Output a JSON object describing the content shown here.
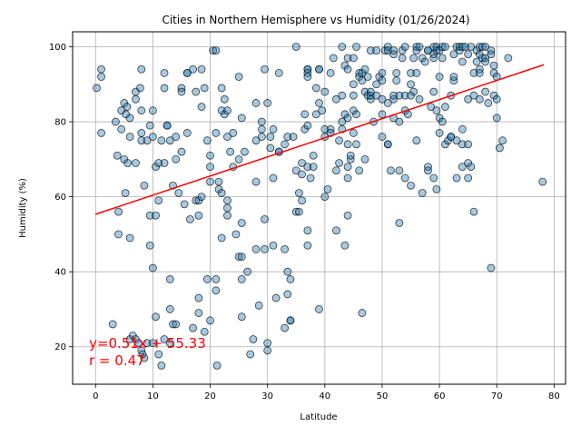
{
  "chart_data": {
    "type": "scatter",
    "title": "Cities in Northern Hemisphere vs Humidity (01/26/2024)",
    "xlabel": "Latitude",
    "ylabel": "Humidity (%)",
    "xlim": [
      -4,
      82
    ],
    "ylim": [
      10,
      104
    ],
    "xticks": [
      0,
      10,
      20,
      30,
      40,
      50,
      60,
      70,
      80
    ],
    "yticks": [
      20,
      40,
      60,
      80,
      100
    ],
    "grid": true,
    "colors": {
      "point_fill": "#1f77b4",
      "point_edge": "#000000",
      "regression": "#ff0000",
      "annotation": "#ff0000"
    },
    "regression": {
      "slope": 0.51,
      "intercept": 55.33,
      "x_range": [
        0,
        78.2
      ]
    },
    "annotations": {
      "equation": "y=0.51x + 55.33",
      "r_value": "r = 0.47"
    },
    "points": [
      [
        0.2,
        89
      ],
      [
        1,
        94
      ],
      [
        1,
        92
      ],
      [
        1,
        77
      ],
      [
        3,
        26
      ],
      [
        3.5,
        80
      ],
      [
        3.8,
        71
      ],
      [
        4,
        50
      ],
      [
        4,
        56
      ],
      [
        4.5,
        83
      ],
      [
        4.5,
        78
      ],
      [
        5,
        85
      ],
      [
        5,
        70
      ],
      [
        5.2,
        61
      ],
      [
        5.3,
        82
      ],
      [
        5.5,
        84
      ],
      [
        5.6,
        69
      ],
      [
        6,
        49
      ],
      [
        6,
        81
      ],
      [
        6,
        76
      ],
      [
        6,
        22
      ],
      [
        6.5,
        23
      ],
      [
        7,
        69
      ],
      [
        7,
        88
      ],
      [
        7,
        86
      ],
      [
        7,
        22
      ],
      [
        7.5,
        21
      ],
      [
        7.8,
        89
      ],
      [
        8,
        83
      ],
      [
        8,
        94
      ],
      [
        8,
        77
      ],
      [
        8,
        75
      ],
      [
        8,
        19
      ],
      [
        8.2,
        18
      ],
      [
        8.5,
        63
      ],
      [
        8.5,
        17
      ],
      [
        9,
        75
      ],
      [
        9,
        21
      ],
      [
        9.5,
        79
      ],
      [
        9.5,
        55
      ],
      [
        9.5,
        47
      ],
      [
        10,
        83
      ],
      [
        10,
        76
      ],
      [
        10,
        41
      ],
      [
        10,
        21
      ],
      [
        10.5,
        28
      ],
      [
        10.5,
        68
      ],
      [
        10.5,
        55
      ],
      [
        11,
        69
      ],
      [
        11,
        59
      ],
      [
        11,
        18
      ],
      [
        11.5,
        75
      ],
      [
        11.5,
        15
      ],
      [
        12,
        93
      ],
      [
        12,
        89
      ],
      [
        12,
        22
      ],
      [
        12,
        69
      ],
      [
        12.5,
        79
      ],
      [
        12.5,
        79
      ],
      [
        13,
        38
      ],
      [
        13,
        75
      ],
      [
        13,
        30
      ],
      [
        13,
        21
      ],
      [
        13.5,
        63
      ],
      [
        13.5,
        26
      ],
      [
        14,
        76
      ],
      [
        14,
        70
      ],
      [
        14,
        26
      ],
      [
        14.5,
        61
      ],
      [
        15,
        89
      ],
      [
        15,
        88
      ],
      [
        15,
        72
      ],
      [
        15.5,
        58
      ],
      [
        16,
        93
      ],
      [
        16,
        77
      ],
      [
        16,
        93
      ],
      [
        16.5,
        54
      ],
      [
        17,
        94
      ],
      [
        17,
        25
      ],
      [
        17.5,
        59
      ],
      [
        17.5,
        88
      ],
      [
        18,
        29
      ],
      [
        18,
        33
      ],
      [
        18,
        55
      ],
      [
        18,
        59
      ],
      [
        18.5,
        60
      ],
      [
        18.5,
        94
      ],
      [
        18.5,
        84
      ],
      [
        19,
        89
      ],
      [
        19,
        24
      ],
      [
        19.5,
        38
      ],
      [
        19.5,
        75
      ],
      [
        20,
        71
      ],
      [
        20,
        68
      ],
      [
        20,
        64
      ],
      [
        20,
        27
      ],
      [
        20.5,
        99
      ],
      [
        21,
        99
      ],
      [
        21,
        77
      ],
      [
        21,
        38
      ],
      [
        21,
        35
      ],
      [
        21.2,
        15
      ],
      [
        21.5,
        64
      ],
      [
        21.5,
        62
      ],
      [
        22,
        83
      ],
      [
        22,
        49
      ],
      [
        22,
        61
      ],
      [
        22,
        89
      ],
      [
        22.5,
        86
      ],
      [
        22.5,
        82
      ],
      [
        23,
        76
      ],
      [
        23,
        59
      ],
      [
        23,
        57
      ],
      [
        23,
        55
      ],
      [
        23,
        83
      ],
      [
        23.5,
        72
      ],
      [
        24,
        68
      ],
      [
        24,
        77
      ],
      [
        24.5,
        50
      ],
      [
        25,
        92
      ],
      [
        25,
        44
      ],
      [
        25,
        70
      ],
      [
        25.5,
        81
      ],
      [
        25.5,
        53
      ],
      [
        25.5,
        44
      ],
      [
        25.5,
        38
      ],
      [
        25.5,
        28
      ],
      [
        26,
        72
      ],
      [
        26.5,
        40
      ],
      [
        27,
        18
      ],
      [
        27.5,
        22
      ],
      [
        28,
        75
      ],
      [
        28,
        64
      ],
      [
        28,
        46
      ],
      [
        28,
        85
      ],
      [
        28.5,
        31
      ],
      [
        29,
        76
      ],
      [
        29,
        80
      ],
      [
        29,
        78
      ],
      [
        29.5,
        94
      ],
      [
        29.5,
        54
      ],
      [
        29.5,
        46
      ],
      [
        30,
        85
      ],
      [
        30,
        21
      ],
      [
        30,
        19
      ],
      [
        30.5,
        76
      ],
      [
        30.5,
        73
      ],
      [
        31,
        78
      ],
      [
        31,
        65
      ],
      [
        31,
        47
      ],
      [
        31.5,
        33
      ],
      [
        32,
        93
      ],
      [
        32,
        72
      ],
      [
        32,
        72
      ],
      [
        33,
        74
      ],
      [
        33,
        25
      ],
      [
        33,
        46
      ],
      [
        33.5,
        76
      ],
      [
        33.5,
        34
      ],
      [
        33.5,
        40
      ],
      [
        34,
        38
      ],
      [
        34,
        27
      ],
      [
        34,
        27
      ],
      [
        34.5,
        76
      ],
      [
        35,
        100
      ],
      [
        35,
        67
      ],
      [
        35,
        56
      ],
      [
        35.5,
        56
      ],
      [
        35.5,
        61
      ],
      [
        36,
        59
      ],
      [
        36,
        66
      ],
      [
        36,
        69
      ],
      [
        36.5,
        78
      ],
      [
        36.5,
        82
      ],
      [
        37,
        94
      ],
      [
        37,
        94
      ],
      [
        37,
        93
      ],
      [
        37,
        92
      ],
      [
        37,
        79
      ],
      [
        37,
        68
      ],
      [
        37,
        51
      ],
      [
        37,
        47
      ],
      [
        37.5,
        65
      ],
      [
        38,
        71
      ],
      [
        38,
        68
      ],
      [
        38.5,
        82
      ],
      [
        38.5,
        89
      ],
      [
        39,
        94
      ],
      [
        39,
        94
      ],
      [
        39,
        85
      ],
      [
        39,
        30
      ],
      [
        39.5,
        83
      ],
      [
        40,
        88
      ],
      [
        40,
        78
      ],
      [
        40,
        76
      ],
      [
        40,
        60
      ],
      [
        40.5,
        62
      ],
      [
        41,
        93
      ],
      [
        41,
        78
      ],
      [
        41,
        77
      ],
      [
        41.5,
        97
      ],
      [
        42,
        86
      ],
      [
        42,
        67
      ],
      [
        42,
        51
      ],
      [
        42.5,
        75
      ],
      [
        42.5,
        69
      ],
      [
        43,
        100
      ],
      [
        43,
        80
      ],
      [
        43,
        78
      ],
      [
        43,
        87
      ],
      [
        43.5,
        82
      ],
      [
        43.5,
        95
      ],
      [
        43.5,
        47
      ],
      [
        44,
        97
      ],
      [
        44,
        94
      ],
      [
        44,
        81
      ],
      [
        44,
        74
      ],
      [
        44,
        68
      ],
      [
        44,
        65
      ],
      [
        44,
        55
      ],
      [
        44.5,
        70
      ],
      [
        44.5,
        71
      ],
      [
        45,
        87
      ],
      [
        45,
        83
      ],
      [
        45,
        77
      ],
      [
        45,
        97
      ],
      [
        45,
        90
      ],
      [
        45.5,
        100
      ],
      [
        45.5,
        74
      ],
      [
        45.5,
        82
      ],
      [
        46,
        93
      ],
      [
        46,
        92
      ],
      [
        46,
        67
      ],
      [
        46.5,
        93
      ],
      [
        46.5,
        91
      ],
      [
        46.5,
        29
      ],
      [
        47,
        70
      ],
      [
        47,
        88
      ],
      [
        47,
        94
      ],
      [
        47.5,
        87
      ],
      [
        47.5,
        92
      ],
      [
        48,
        86
      ],
      [
        48,
        87
      ],
      [
        48,
        88
      ],
      [
        48,
        99
      ],
      [
        48.5,
        80
      ],
      [
        49,
        99
      ],
      [
        49,
        90
      ],
      [
        49,
        87
      ],
      [
        49.5,
        92
      ],
      [
        50,
        86
      ],
      [
        50,
        76
      ],
      [
        50,
        82
      ],
      [
        50,
        93
      ],
      [
        50,
        91
      ],
      [
        50.5,
        99
      ],
      [
        51,
        100
      ],
      [
        51,
        99
      ],
      [
        51,
        74
      ],
      [
        51,
        74
      ],
      [
        51,
        85
      ],
      [
        51.5,
        67
      ],
      [
        52,
        99
      ],
      [
        52,
        98
      ],
      [
        52,
        86
      ],
      [
        52,
        81
      ],
      [
        52,
        87
      ],
      [
        52.5,
        93
      ],
      [
        52.5,
        91
      ],
      [
        53,
        87
      ],
      [
        53,
        80
      ],
      [
        53,
        67
      ],
      [
        53,
        53
      ],
      [
        53.5,
        99
      ],
      [
        53.5,
        97
      ],
      [
        54,
        100
      ],
      [
        54,
        87
      ],
      [
        54,
        83
      ],
      [
        54,
        65
      ],
      [
        54.5,
        82
      ],
      [
        55,
        90
      ],
      [
        55,
        87
      ],
      [
        55,
        93
      ],
      [
        55,
        63
      ],
      [
        55.5,
        97
      ],
      [
        55.5,
        88
      ],
      [
        56,
        100
      ],
      [
        56,
        99
      ],
      [
        56,
        93
      ],
      [
        56,
        75
      ],
      [
        56.5,
        100
      ],
      [
        56.5,
        86
      ],
      [
        57,
        97
      ],
      [
        57,
        61
      ],
      [
        57.5,
        96
      ],
      [
        58,
        99
      ],
      [
        58,
        99
      ],
      [
        58,
        68
      ],
      [
        58,
        67
      ],
      [
        58.5,
        84
      ],
      [
        59,
        98
      ],
      [
        59,
        100
      ],
      [
        59,
        97
      ],
      [
        59,
        88
      ],
      [
        59,
        65
      ],
      [
        59.5,
        100
      ],
      [
        59.5,
        99
      ],
      [
        59.5,
        83
      ],
      [
        59.5,
        62
      ],
      [
        60,
        77
      ],
      [
        60,
        99
      ],
      [
        60,
        92
      ],
      [
        60,
        81
      ],
      [
        60.5,
        100
      ],
      [
        60.5,
        97
      ],
      [
        60.5,
        80
      ],
      [
        61,
        74
      ],
      [
        61,
        84
      ],
      [
        61,
        100
      ],
      [
        61.5,
        75
      ],
      [
        62,
        87
      ],
      [
        62,
        76
      ],
      [
        62,
        76
      ],
      [
        62.5,
        98
      ],
      [
        62.5,
        91
      ],
      [
        62.5,
        92
      ],
      [
        63,
        100
      ],
      [
        63,
        65
      ],
      [
        63,
        75
      ],
      [
        63.5,
        100
      ],
      [
        63.5,
        99
      ],
      [
        64,
        100
      ],
      [
        64,
        96
      ],
      [
        64,
        78
      ],
      [
        64,
        74
      ],
      [
        64,
        68
      ],
      [
        64.5,
        100
      ],
      [
        65,
        98
      ],
      [
        65,
        86
      ],
      [
        65,
        74
      ],
      [
        65,
        69
      ],
      [
        65,
        65
      ],
      [
        65.5,
        100
      ],
      [
        65.5,
        68
      ],
      [
        66,
        93
      ],
      [
        66,
        87
      ],
      [
        66,
        56
      ],
      [
        66.5,
        99
      ],
      [
        66.5,
        96
      ],
      [
        67,
        100
      ],
      [
        67,
        98
      ],
      [
        67,
        94
      ],
      [
        67,
        93
      ],
      [
        67,
        86
      ],
      [
        67.5,
        100
      ],
      [
        67.5,
        97
      ],
      [
        68,
        100
      ],
      [
        68,
        97
      ],
      [
        68,
        96
      ],
      [
        68,
        88
      ],
      [
        68.5,
        85
      ],
      [
        69,
        99
      ],
      [
        69,
        98
      ],
      [
        69,
        41
      ],
      [
        69.5,
        95
      ],
      [
        69.5,
        93
      ],
      [
        69.5,
        87
      ],
      [
        70,
        92
      ],
      [
        70,
        86
      ],
      [
        70,
        81
      ],
      [
        70.5,
        73
      ],
      [
        71,
        75
      ],
      [
        72,
        97
      ],
      [
        78,
        64
      ]
    ]
  }
}
